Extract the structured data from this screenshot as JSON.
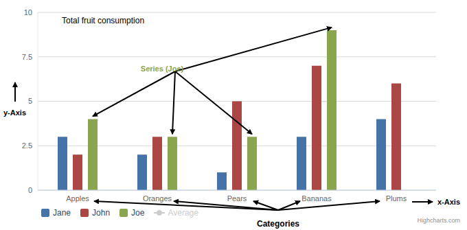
{
  "chart_data": {
    "type": "bar",
    "title": "Total fruit consumption",
    "categories": [
      "Apples",
      "Oranges",
      "Pears",
      "Bananas",
      "Plums"
    ],
    "series": [
      {
        "name": "Jane",
        "color": "#4572A7",
        "values": [
          3,
          2,
          1,
          3,
          4
        ]
      },
      {
        "name": "John",
        "color": "#AA4643",
        "values": [
          2,
          3,
          5,
          7,
          6
        ]
      },
      {
        "name": "Joe",
        "color": "#89A54E",
        "values": [
          4,
          3,
          3,
          9,
          0
        ]
      },
      {
        "name": "Average",
        "type": "line",
        "color": "#CCCCCC",
        "values": [
          null,
          null,
          null,
          null,
          null
        ]
      }
    ],
    "ylim": [
      0,
      10
    ],
    "yticks": [
      0,
      2.5,
      5,
      7.5,
      10
    ],
    "grid": true,
    "legend": "bottom",
    "annotations": {
      "series": "Series (Joe)",
      "categories": "Categories",
      "y_axis": "y-Axis",
      "x_axis": "x-Axis"
    },
    "credit": "Highcharts.com"
  }
}
